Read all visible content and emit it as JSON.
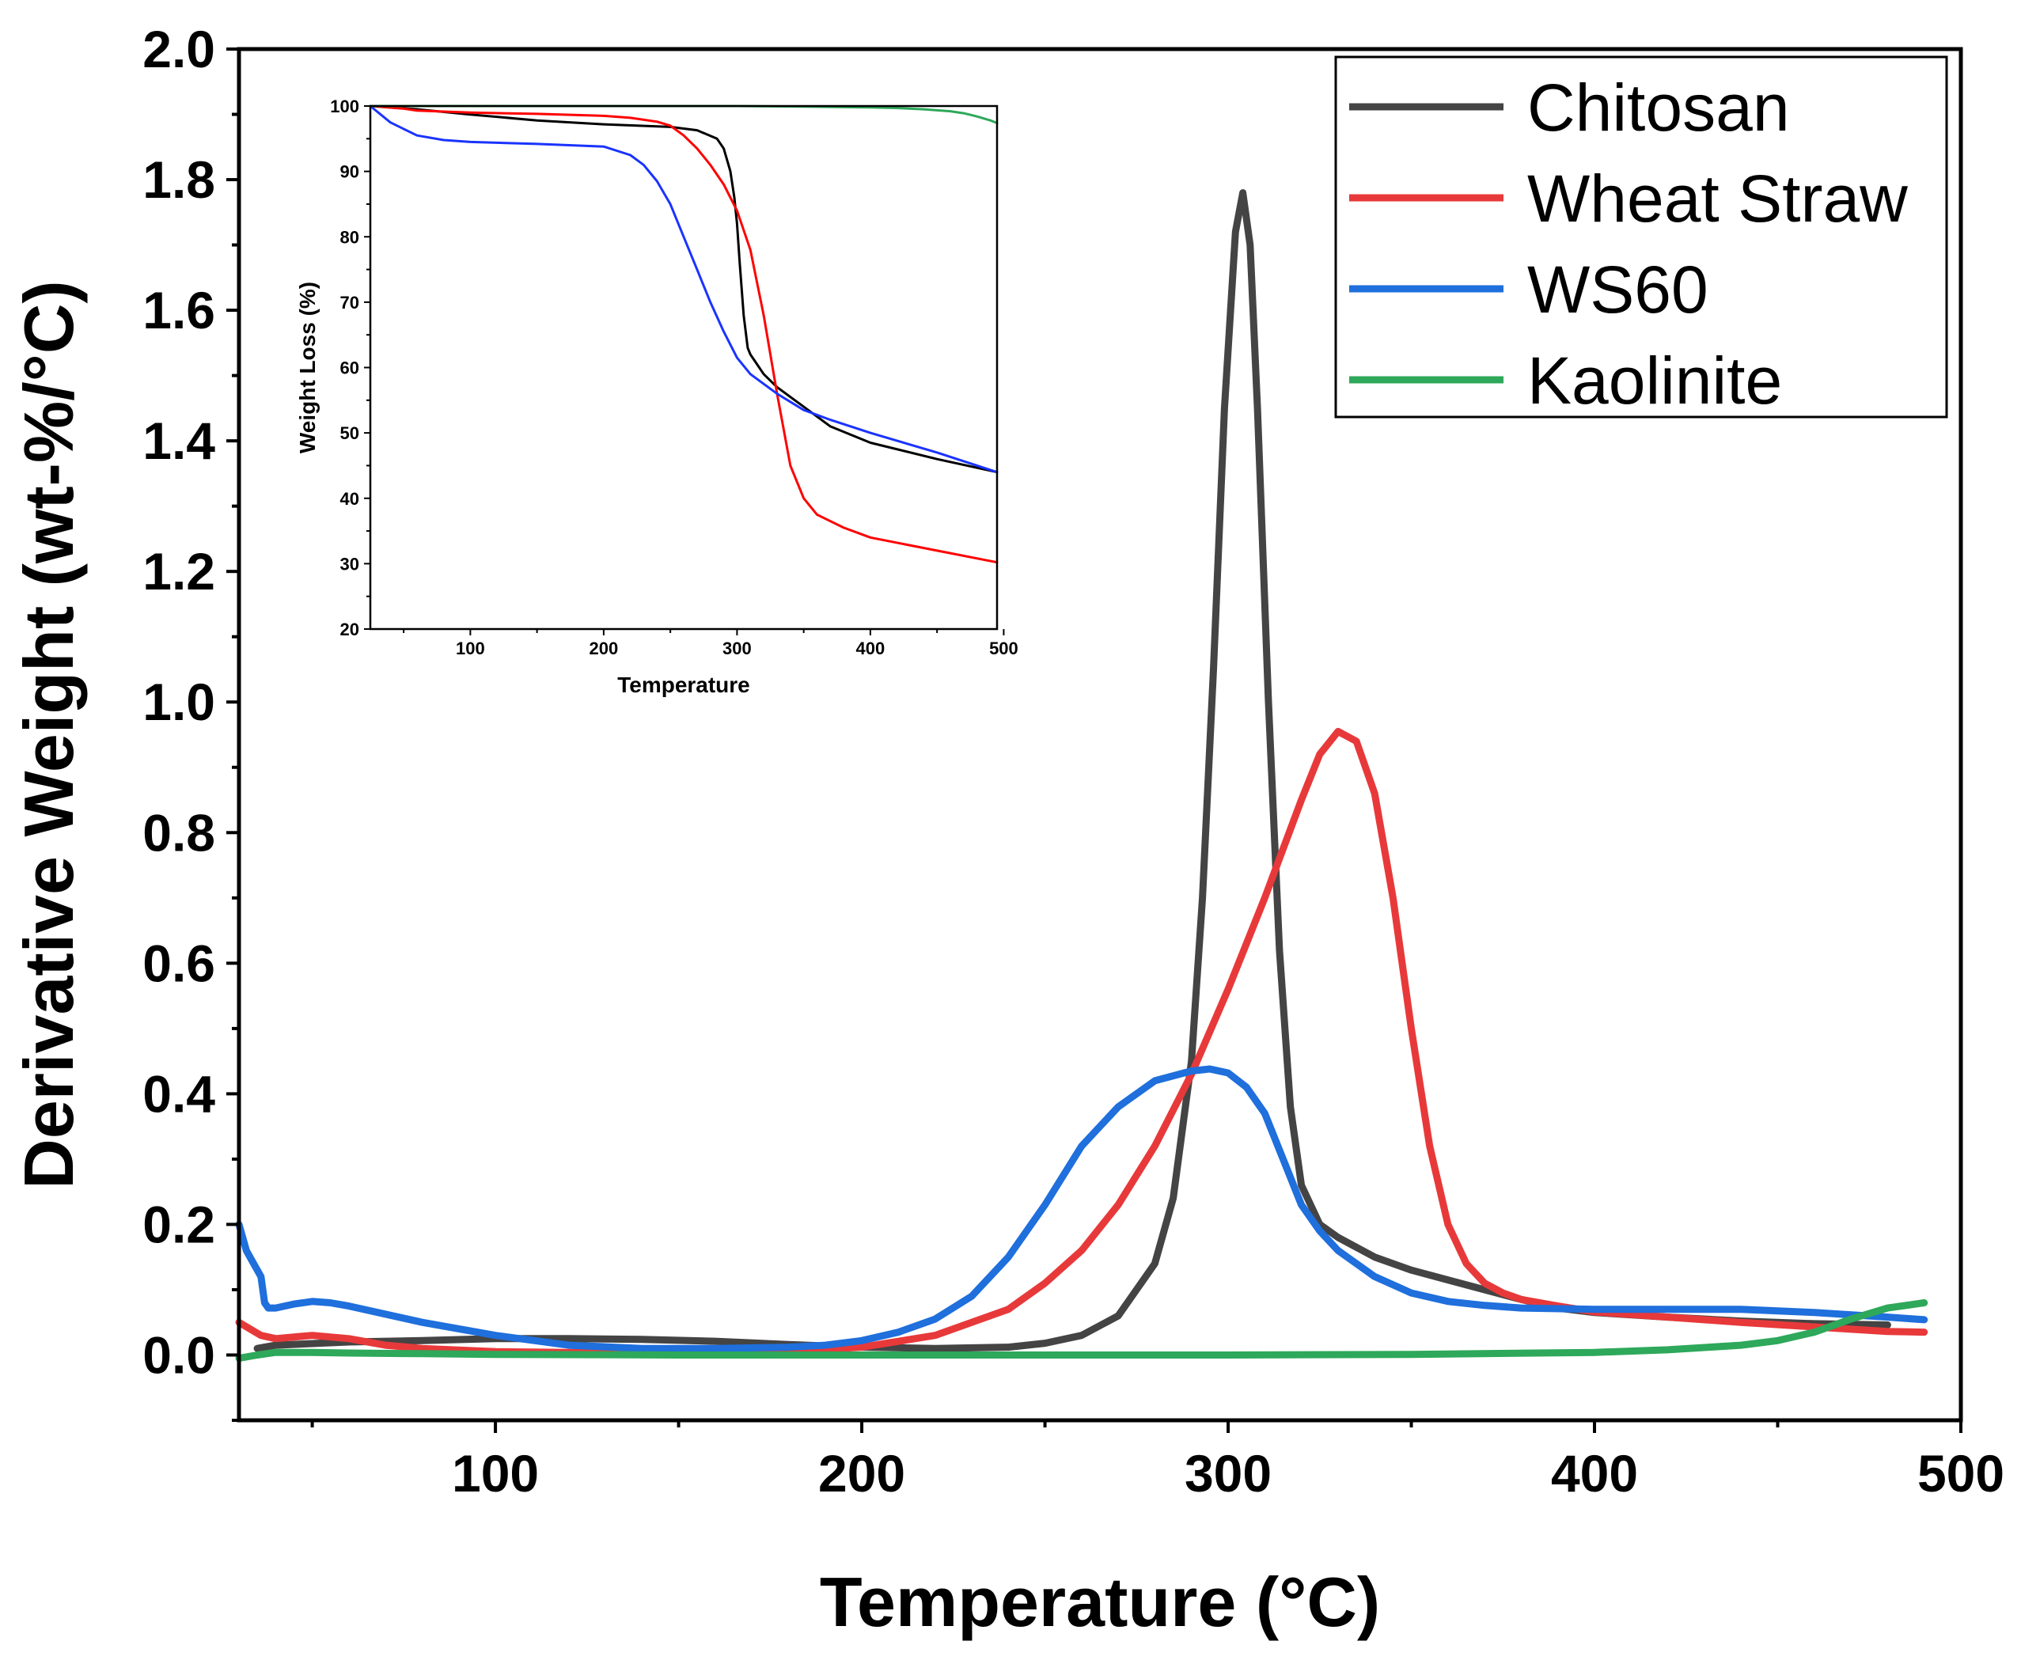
{
  "chart_data": [
    {
      "id": "main",
      "type": "line",
      "title": "",
      "xlabel": "Temperature (°C)",
      "ylabel": "Derivative Weight (wt-%/°C)",
      "xlim": [
        30,
        500
      ],
      "ylim": [
        -0.1,
        2.0
      ],
      "xticks": [
        100,
        200,
        300,
        400,
        500
      ],
      "yticks": [
        0.0,
        0.2,
        0.4,
        0.6,
        0.8,
        1.0,
        1.2,
        1.4,
        1.6,
        1.8,
        2.0
      ],
      "xtick_labels": [
        "100",
        "200",
        "300",
        "400",
        "500"
      ],
      "ytick_labels": [
        "0.0",
        "0.2",
        "0.4",
        "0.6",
        "0.8",
        "1.0",
        "1.2",
        "1.4",
        "1.6",
        "1.8",
        "2.0"
      ],
      "grid": false,
      "legend_position": "top-right",
      "series": [
        {
          "name": "Chitosan",
          "color": "#444444",
          "x": [
            35,
            40,
            60,
            80,
            100,
            120,
            140,
            160,
            180,
            200,
            220,
            240,
            250,
            260,
            270,
            280,
            285,
            290,
            293,
            296,
            299,
            302,
            304,
            306,
            308,
            311,
            314,
            317,
            320,
            325,
            330,
            340,
            350,
            360,
            370,
            380,
            390,
            400,
            420,
            440,
            460,
            480
          ],
          "y": [
            0.01,
            0.015,
            0.02,
            0.022,
            0.025,
            0.025,
            0.024,
            0.021,
            0.016,
            0.012,
            0.01,
            0.012,
            0.018,
            0.03,
            0.06,
            0.14,
            0.24,
            0.45,
            0.7,
            1.05,
            1.45,
            1.72,
            1.78,
            1.7,
            1.45,
            1.0,
            0.62,
            0.38,
            0.26,
            0.2,
            0.18,
            0.15,
            0.13,
            0.115,
            0.1,
            0.085,
            0.072,
            0.065,
            0.058,
            0.052,
            0.048,
            0.046
          ]
        },
        {
          "name": "Wheat Straw",
          "color": "#e8393a",
          "x": [
            30,
            33,
            36,
            40,
            50,
            60,
            70,
            80,
            100,
            120,
            140,
            160,
            180,
            200,
            220,
            240,
            250,
            260,
            270,
            280,
            290,
            300,
            310,
            320,
            325,
            330,
            335,
            340,
            345,
            350,
            355,
            360,
            365,
            370,
            375,
            380,
            390,
            400,
            420,
            440,
            460,
            480,
            490
          ],
          "y": [
            0.05,
            0.04,
            0.03,
            0.025,
            0.03,
            0.025,
            0.015,
            0.01,
            0.005,
            0.004,
            0.004,
            0.005,
            0.006,
            0.012,
            0.03,
            0.07,
            0.11,
            0.16,
            0.23,
            0.32,
            0.43,
            0.56,
            0.7,
            0.85,
            0.92,
            0.955,
            0.94,
            0.86,
            0.7,
            0.5,
            0.32,
            0.2,
            0.14,
            0.11,
            0.095,
            0.085,
            0.075,
            0.066,
            0.058,
            0.05,
            0.043,
            0.036,
            0.035
          ]
        },
        {
          "name": "WS60",
          "color": "#1f6fdc",
          "x": [
            30,
            32,
            34,
            36,
            37,
            38,
            40,
            45,
            50,
            55,
            60,
            80,
            100,
            120,
            140,
            160,
            180,
            190,
            200,
            210,
            220,
            230,
            240,
            250,
            260,
            270,
            280,
            290,
            295,
            300,
            305,
            310,
            315,
            320,
            325,
            330,
            340,
            350,
            360,
            370,
            380,
            400,
            420,
            440,
            460,
            480,
            490
          ],
          "y": [
            0.2,
            0.16,
            0.14,
            0.12,
            0.08,
            0.072,
            0.072,
            0.078,
            0.082,
            0.08,
            0.075,
            0.05,
            0.03,
            0.015,
            0.01,
            0.01,
            0.012,
            0.015,
            0.022,
            0.035,
            0.055,
            0.09,
            0.15,
            0.23,
            0.32,
            0.38,
            0.42,
            0.435,
            0.438,
            0.432,
            0.41,
            0.37,
            0.3,
            0.23,
            0.19,
            0.16,
            0.12,
            0.095,
            0.082,
            0.076,
            0.072,
            0.07,
            0.07,
            0.07,
            0.065,
            0.058,
            0.054
          ]
        },
        {
          "name": "Kaolinite",
          "color": "#2ea85a",
          "x": [
            30,
            35,
            40,
            50,
            60,
            80,
            100,
            150,
            200,
            250,
            300,
            350,
            400,
            420,
            440,
            450,
            460,
            470,
            480,
            490
          ],
          "y": [
            -0.005,
            0.0,
            0.004,
            0.004,
            0.003,
            0.002,
            0.001,
            0.0,
            0.0,
            0.0,
            0.0,
            0.001,
            0.004,
            0.008,
            0.015,
            0.022,
            0.035,
            0.055,
            0.072,
            0.08
          ]
        }
      ]
    },
    {
      "id": "inset",
      "type": "line",
      "title": "",
      "xlabel": "Temperature",
      "ylabel": "Weight Loss (%)",
      "xlim": [
        25,
        495
      ],
      "ylim": [
        20,
        100
      ],
      "xticks": [
        100,
        200,
        300,
        400,
        500
      ],
      "yticks": [
        20,
        30,
        40,
        50,
        60,
        70,
        80,
        90,
        100
      ],
      "xtick_labels": [
        "100",
        "200",
        "300",
        "400",
        "500"
      ],
      "ytick_labels": [
        "20",
        "30",
        "40",
        "50",
        "60",
        "70",
        "80",
        "90",
        "100"
      ],
      "grid": false,
      "series": [
        {
          "name": "Chitosan",
          "color": "#000000",
          "x": [
            25,
            60,
            100,
            150,
            200,
            250,
            270,
            285,
            290,
            295,
            298,
            300,
            302,
            305,
            308,
            310,
            315,
            320,
            330,
            350,
            370,
            400,
            450,
            495
          ],
          "y": [
            100,
            99.5,
            98.7,
            97.8,
            97.2,
            96.8,
            96.3,
            95,
            93.5,
            90,
            86,
            82,
            76,
            68,
            63,
            62,
            60.5,
            59,
            57,
            54,
            51,
            48.5,
            46,
            44
          ]
        },
        {
          "name": "Wheat Straw",
          "color": "#ff0000",
          "x": [
            25,
            50,
            60,
            100,
            150,
            200,
            220,
            240,
            250,
            260,
            270,
            280,
            290,
            300,
            310,
            320,
            330,
            340,
            350,
            360,
            370,
            380,
            400,
            450,
            495
          ],
          "y": [
            100,
            99.6,
            99.3,
            99,
            98.8,
            98.5,
            98.2,
            97.6,
            97,
            95.5,
            93.5,
            91,
            88,
            84,
            78,
            68,
            56,
            45,
            40,
            37.5,
            36.5,
            35.5,
            34,
            32,
            30.2
          ]
        },
        {
          "name": "WS60",
          "color": "#1a33ff",
          "x": [
            25,
            40,
            60,
            80,
            100,
            150,
            200,
            220,
            230,
            240,
            250,
            260,
            270,
            280,
            290,
            300,
            310,
            320,
            330,
            350,
            370,
            400,
            450,
            495
          ],
          "y": [
            100,
            97.5,
            95.5,
            94.8,
            94.5,
            94.2,
            93.8,
            92.5,
            91,
            88.5,
            85,
            80,
            75,
            70,
            65.5,
            61.5,
            59,
            57.5,
            56,
            53.5,
            52,
            50,
            47,
            44
          ]
        },
        {
          "name": "Kaolinite",
          "color": "#2ea85a",
          "x": [
            25,
            100,
            200,
            300,
            350,
            400,
            420,
            440,
            460,
            470,
            480,
            490,
            495
          ],
          "y": [
            100,
            100,
            100,
            100,
            99.9,
            99.8,
            99.7,
            99.5,
            99.2,
            98.9,
            98.4,
            97.8,
            97.4
          ]
        }
      ]
    }
  ]
}
